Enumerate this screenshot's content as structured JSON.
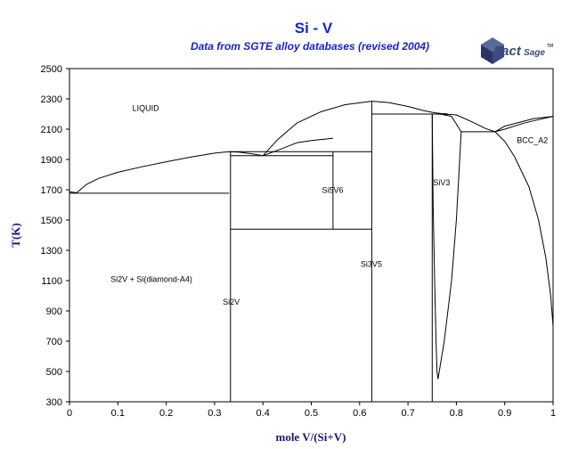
{
  "chart_data": {
    "type": "line",
    "title": "Si - V",
    "subtitle": "Data from SGTE alloy databases (revised 2004)",
    "xlabel": "mole V/(Si+V)",
    "ylabel": "T(K)",
    "xlim": [
      0,
      1
    ],
    "ylim": [
      300,
      2500
    ],
    "xticks": [
      "0",
      "0.1",
      "0.2",
      "0.3",
      "0.4",
      "0.5",
      "0.6",
      "0.7",
      "0.8",
      "0.9",
      "1"
    ],
    "yticks": [
      "300",
      "500",
      "700",
      "900",
      "1100",
      "1300",
      "1500",
      "1700",
      "1900",
      "2100",
      "2300",
      "2500"
    ],
    "grid": false,
    "line_color": "#000000",
    "title_color": "#1a22c8",
    "series": [
      {
        "id": "liquidus-si-side",
        "x": [
          0,
          0.015,
          0.035,
          0.06,
          0.1,
          0.15,
          0.2,
          0.25,
          0.3,
          0.33,
          0.35,
          0.38,
          0.4
        ],
        "y": [
          1687,
          1680,
          1735,
          1775,
          1815,
          1852,
          1885,
          1915,
          1942,
          1951,
          1948,
          1936,
          1925
        ]
      },
      {
        "id": "liquidus-si2v-si5v6",
        "x": [
          0.4,
          0.43,
          0.47,
          0.5,
          0.545
        ],
        "y": [
          1925,
          1960,
          2010,
          2025,
          2040
        ]
      },
      {
        "id": "liquidus-si5v6-si3v5",
        "x": [
          0.4,
          0.43,
          0.47,
          0.52,
          0.57,
          0.625
        ],
        "y": [
          1925,
          2030,
          2140,
          2215,
          2262,
          2285
        ]
      },
      {
        "id": "liquidus-si3v5-top",
        "x": [
          0.625,
          0.66,
          0.7,
          0.73,
          0.755,
          0.77,
          0.78
        ],
        "y": [
          2285,
          2276,
          2250,
          2224,
          2208,
          2203,
          2201
        ]
      },
      {
        "id": "liquidus-v-rich",
        "x": [
          0.77,
          0.8,
          0.83,
          0.86,
          0.88
        ],
        "y": [
          2202,
          2194,
          2152,
          2105,
          2083
        ]
      },
      {
        "id": "liquidus-bcc",
        "x": [
          0.88,
          0.9,
          0.93,
          0.96,
          1
        ],
        "y": [
          2083,
          2120,
          2145,
          2170,
          2185
        ]
      },
      {
        "id": "solidus-bcc",
        "x": [
          0.88,
          0.9,
          0.94,
          0.97,
          1
        ],
        "y": [
          2083,
          2100,
          2140,
          2163,
          2185
        ]
      },
      {
        "id": "bcc-solvus",
        "x": [
          0.88,
          0.9,
          0.92,
          0.95,
          0.97,
          0.985,
          0.995,
          1
        ],
        "y": [
          2083,
          2020,
          1920,
          1720,
          1500,
          1250,
          1000,
          800
        ]
      },
      {
        "id": "si3-phase-left",
        "x": [
          0.75,
          0.752,
          0.755,
          0.758,
          0.76,
          0.762
        ],
        "y": [
          2200,
          1600,
          1100,
          700,
          500,
          450
        ]
      },
      {
        "id": "si3-phase-right",
        "x": [
          0.762,
          0.775,
          0.79,
          0.8,
          0.806,
          0.81
        ],
        "y": [
          450,
          700,
          1100,
          1500,
          1850,
          2083
        ]
      },
      {
        "id": "si3-liquid-top",
        "x": [
          0.76,
          0.77,
          0.79,
          0.81,
          0.88
        ],
        "y": [
          2200,
          2198,
          2185,
          2083,
          2083
        ]
      },
      {
        "id": "si3-apex",
        "x": [
          0.772,
          0.782,
          0.776
        ],
        "y": [
          2200,
          2200,
          2190
        ]
      },
      {
        "id": "eutectic-si",
        "x": [
          0,
          0.33
        ],
        "y": [
          1677,
          1677
        ]
      },
      {
        "id": "si2v-line",
        "x": [
          0.333,
          0.333
        ],
        "y": [
          300,
          1951
        ]
      },
      {
        "id": "eutectic-si2v-si5v6-upper",
        "x": [
          0.333,
          0.625
        ],
        "y": [
          1951,
          1951
        ]
      },
      {
        "id": "eutectic-si2v-si5v6-lower",
        "x": [
          0.333,
          0.545
        ],
        "y": [
          1925,
          1925
        ]
      },
      {
        "id": "si5v6-line",
        "x": [
          0.545,
          0.545
        ],
        "y": [
          1440,
          1951
        ]
      },
      {
        "id": "si5v6-decomp",
        "x": [
          0.333,
          0.625
        ],
        "y": [
          1440,
          1440
        ]
      },
      {
        "id": "si3v5-line",
        "x": [
          0.625,
          0.625
        ],
        "y": [
          300,
          2285
        ]
      },
      {
        "id": "peritectic-si3v5",
        "x": [
          0.625,
          0.78
        ],
        "y": [
          2200,
          2200
        ]
      },
      {
        "id": "si3v-line",
        "x": [
          0.75,
          0.75
        ],
        "y": [
          300,
          2200
        ]
      }
    ],
    "annotations": [
      {
        "text": "LIQUID",
        "x": 0.13,
        "y": 2220
      },
      {
        "text": "BCC_A2",
        "x": 0.925,
        "y": 2010
      },
      {
        "text": "Si5V6",
        "x": 0.522,
        "y": 1680
      },
      {
        "text": "SiV3",
        "x": 0.752,
        "y": 1730
      },
      {
        "text": "Si3V5",
        "x": 0.602,
        "y": 1190
      },
      {
        "text": "Si2V + Si(diamond-A4)",
        "x": 0.085,
        "y": 1090
      },
      {
        "text": "Si2V",
        "x": 0.317,
        "y": 940
      }
    ]
  },
  "logo": {
    "brand": "FactSage",
    "brand_part1": "Fact",
    "brand_part2": "Sage",
    "trademark": "TM",
    "color": "#3c4a78"
  }
}
